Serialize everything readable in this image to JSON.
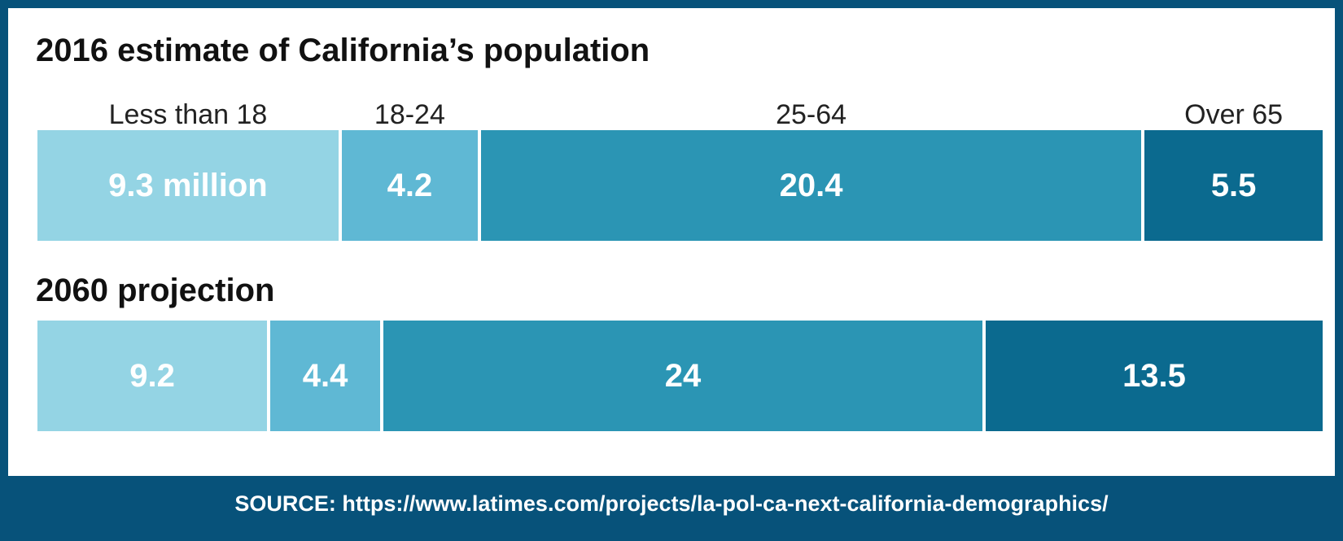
{
  "chart_data": [
    {
      "type": "bar",
      "orientation": "horizontal-stacked",
      "title": "2016 estimate of California’s population",
      "categories": [
        "Less than 18",
        "18-24",
        "25-64",
        "Over 65"
      ],
      "values": [
        9.3,
        4.2,
        20.4,
        5.5
      ],
      "value_labels": [
        "9.3 million",
        "4.2",
        "20.4",
        "5.5"
      ],
      "unit": "million"
    },
    {
      "type": "bar",
      "orientation": "horizontal-stacked",
      "title": "2060 projection",
      "categories": [
        "Less than 18",
        "18-24",
        "25-64",
        "Over 65"
      ],
      "values": [
        9.2,
        4.4,
        24,
        13.5
      ],
      "value_labels": [
        "9.2",
        "4.4",
        "24",
        "13.5"
      ],
      "unit": "million"
    }
  ],
  "colors": [
    "#94d4e4",
    "#5fb8d4",
    "#2b95b4",
    "#0b6a8f"
  ],
  "source": "SOURCE: https://www.latimes.com/projects/la-pol-ca-next-california-demographics/"
}
